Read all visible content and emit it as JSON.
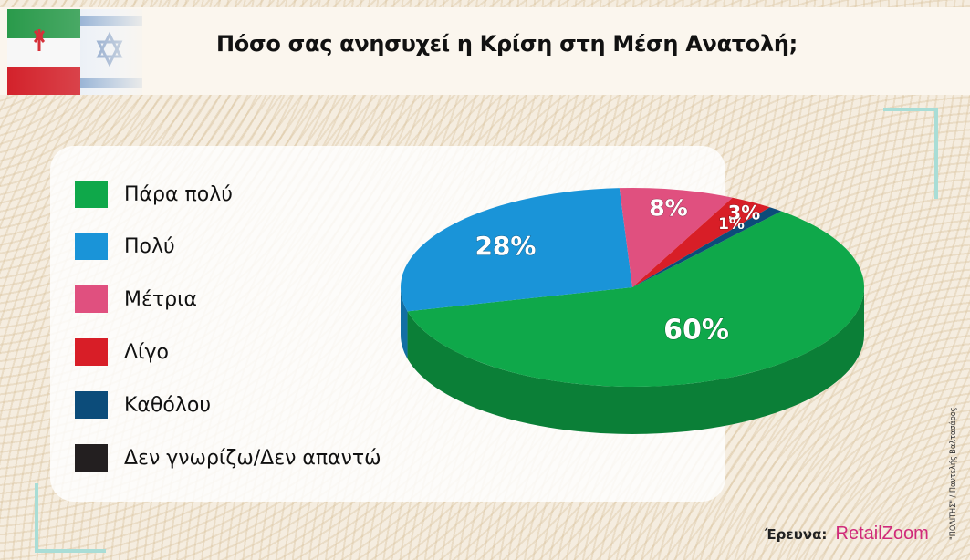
{
  "header": {
    "title": "Πόσο σας ανησυχεί η Κρίση στη Μέση Ανατολή;"
  },
  "flags": {
    "image_description_icons": [
      "iran-flag-icon",
      "israel-flag-icon"
    ]
  },
  "chart_data": {
    "type": "pie",
    "title": "Πόσο σας ανησυχεί η Κρίση στη Μέση Ανατολή;",
    "legend_position": "left",
    "slices": [
      {
        "label": "Πάρα πολύ",
        "value": 60,
        "value_label": "60%",
        "color": "#0fa84a",
        "side_color": "#0b7f37"
      },
      {
        "label": "Πολύ",
        "value": 28,
        "value_label": "28%",
        "color": "#1a94d8",
        "side_color": "#136fa3"
      },
      {
        "label": "Μέτρια",
        "value": 8,
        "value_label": "8%",
        "color": "#e0507f",
        "side_color": "#a83a60"
      },
      {
        "label": "Λίγο",
        "value": 3,
        "value_label": "3%",
        "color": "#d81e27",
        "side_color": "#9f141c"
      },
      {
        "label": "Καθόλου",
        "value": 1,
        "value_label": "1%",
        "color": "#0c4c7a",
        "side_color": "#083759"
      },
      {
        "label": "Δεν γνωρίζω/Δεν απαντώ",
        "value": 0,
        "value_label": "",
        "color": "#231f20",
        "side_color": "#111111"
      }
    ]
  },
  "credits": {
    "side": "\"ΠΟΛΙΤΗΣ\" / Παντελής Βαλτασάρος",
    "source_label": "Έρευνα:",
    "source_brand": "RetailZoom"
  }
}
